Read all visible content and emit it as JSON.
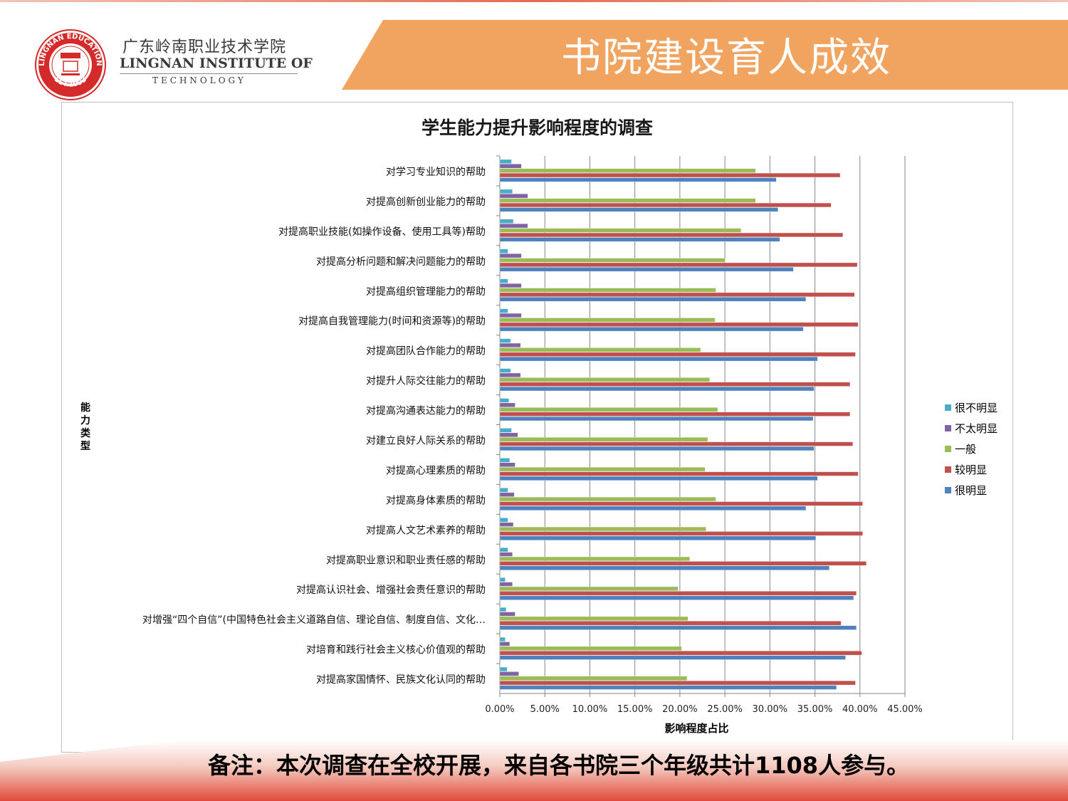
{
  "header": {
    "institute_cn": "广东岭南职业技术学院",
    "institute_en": "LINGNAN INSTITUTE OF",
    "institute_en2": "TECHNOLOGY",
    "slide_title": "书院建设育人成效",
    "logo_ring_top": "LINGNAN EDUCATION",
    "logo_ring_bottom": "EST.1993"
  },
  "colors": {
    "banner": "#f0a460",
    "series": [
      "#4bacc6",
      "#8064a2",
      "#9bbb59",
      "#c0504d",
      "#4f81bd"
    ]
  },
  "footnote": "备注：本次调查在全校开展，来自各书院三个年级共计1108人参与。",
  "chart_data": {
    "type": "bar",
    "orientation": "horizontal",
    "title": "学生能力提升影响程度的调查",
    "xlabel": "影响程度占比",
    "ylabel": "能力类型",
    "xlim": [
      0,
      45
    ],
    "x_ticks": [
      "0.00%",
      "5.00%",
      "10.00%",
      "15.00%",
      "20.00%",
      "25.00%",
      "30.00%",
      "35.00%",
      "40.00%",
      "45.00%"
    ],
    "grid": "vertical",
    "legend_position": "right",
    "categories": [
      "对学习专业知识的帮助",
      "对提高创新创业能力的帮助",
      "对提高职业技能(如操作设备、使用工具等)帮助",
      "对提高分析问题和解决问题能力的帮助",
      "对提高组织管理能力的帮助",
      "对提高自我管理能力(时间和资源等)的帮助",
      "对提高团队合作能力的帮助",
      "对提升人际交往能力的帮助",
      "对提高沟通表达能力的帮助",
      "对建立良好人际关系的帮助",
      "对提高心理素质的帮助",
      "对提高身体素质的帮助",
      "对提高人文艺术素养的帮助",
      "对提高职业意识和职业责任感的帮助",
      "对提高认识社会、增强社会责任意识的帮助",
      "对增强“四个自信”(中国特色社会主义道路自信、理论自信、制度自信、文化…",
      "对培育和践行社会主义核心价值观的帮助",
      "对提高家国情怀、民族文化认同的帮助"
    ],
    "series": [
      {
        "name": "很不明显",
        "values": [
          1.3,
          1.4,
          1.5,
          0.9,
          0.9,
          0.9,
          1.2,
          1.2,
          1.0,
          1.3,
          1.1,
          0.9,
          0.9,
          0.9,
          0.6,
          0.7,
          0.6,
          0.8
        ]
      },
      {
        "name": "不太明显",
        "values": [
          2.4,
          3.1,
          3.1,
          2.4,
          2.4,
          2.4,
          2.3,
          2.3,
          1.7,
          2.0,
          1.7,
          1.6,
          1.5,
          1.4,
          1.4,
          1.7,
          1.1,
          2.1
        ]
      },
      {
        "name": "一般",
        "values": [
          28.4,
          28.4,
          26.8,
          25.0,
          24.0,
          23.9,
          22.3,
          23.3,
          24.2,
          23.1,
          22.8,
          24.0,
          22.9,
          21.1,
          19.8,
          20.9,
          20.2,
          20.8
        ]
      },
      {
        "name": "较明显",
        "values": [
          37.8,
          36.8,
          38.1,
          39.7,
          39.4,
          39.8,
          39.5,
          38.9,
          38.9,
          39.2,
          39.8,
          40.3,
          40.3,
          40.7,
          39.6,
          37.9,
          40.2,
          39.5
        ]
      },
      {
        "name": "很明显",
        "values": [
          30.7,
          30.9,
          31.1,
          32.6,
          34.0,
          33.7,
          35.3,
          34.9,
          34.8,
          34.9,
          35.3,
          34.0,
          35.1,
          36.6,
          39.3,
          39.6,
          38.4,
          37.4
        ]
      }
    ]
  }
}
